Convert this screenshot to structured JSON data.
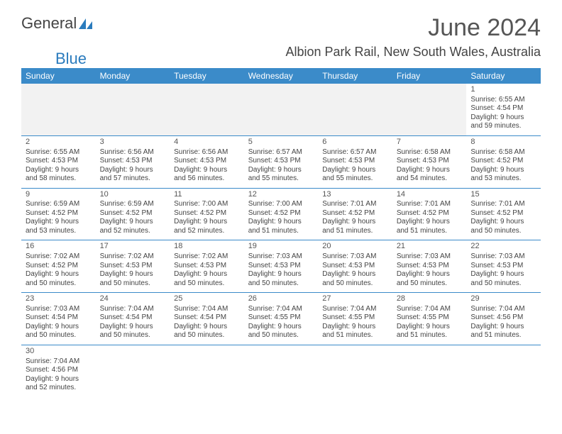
{
  "logo": {
    "text1": "General",
    "text2": "Blue"
  },
  "title": "June 2024",
  "location": "Albion Park Rail, New South Wales, Australia",
  "weekdays": [
    "Sunday",
    "Monday",
    "Tuesday",
    "Wednesday",
    "Thursday",
    "Friday",
    "Saturday"
  ],
  "colors": {
    "header_bg": "#3b8bc9",
    "header_text": "#ffffff",
    "border": "#3b8bc9"
  },
  "days": [
    {
      "n": 1,
      "sr": "6:55 AM",
      "ss": "4:54 PM",
      "dh": 9,
      "dm": 59
    },
    {
      "n": 2,
      "sr": "6:55 AM",
      "ss": "4:53 PM",
      "dh": 9,
      "dm": 58
    },
    {
      "n": 3,
      "sr": "6:56 AM",
      "ss": "4:53 PM",
      "dh": 9,
      "dm": 57
    },
    {
      "n": 4,
      "sr": "6:56 AM",
      "ss": "4:53 PM",
      "dh": 9,
      "dm": 56
    },
    {
      "n": 5,
      "sr": "6:57 AM",
      "ss": "4:53 PM",
      "dh": 9,
      "dm": 55
    },
    {
      "n": 6,
      "sr": "6:57 AM",
      "ss": "4:53 PM",
      "dh": 9,
      "dm": 55
    },
    {
      "n": 7,
      "sr": "6:58 AM",
      "ss": "4:53 PM",
      "dh": 9,
      "dm": 54
    },
    {
      "n": 8,
      "sr": "6:58 AM",
      "ss": "4:52 PM",
      "dh": 9,
      "dm": 53
    },
    {
      "n": 9,
      "sr": "6:59 AM",
      "ss": "4:52 PM",
      "dh": 9,
      "dm": 53
    },
    {
      "n": 10,
      "sr": "6:59 AM",
      "ss": "4:52 PM",
      "dh": 9,
      "dm": 52
    },
    {
      "n": 11,
      "sr": "7:00 AM",
      "ss": "4:52 PM",
      "dh": 9,
      "dm": 52
    },
    {
      "n": 12,
      "sr": "7:00 AM",
      "ss": "4:52 PM",
      "dh": 9,
      "dm": 51
    },
    {
      "n": 13,
      "sr": "7:01 AM",
      "ss": "4:52 PM",
      "dh": 9,
      "dm": 51
    },
    {
      "n": 14,
      "sr": "7:01 AM",
      "ss": "4:52 PM",
      "dh": 9,
      "dm": 51
    },
    {
      "n": 15,
      "sr": "7:01 AM",
      "ss": "4:52 PM",
      "dh": 9,
      "dm": 50
    },
    {
      "n": 16,
      "sr": "7:02 AM",
      "ss": "4:52 PM",
      "dh": 9,
      "dm": 50
    },
    {
      "n": 17,
      "sr": "7:02 AM",
      "ss": "4:53 PM",
      "dh": 9,
      "dm": 50
    },
    {
      "n": 18,
      "sr": "7:02 AM",
      "ss": "4:53 PM",
      "dh": 9,
      "dm": 50
    },
    {
      "n": 19,
      "sr": "7:03 AM",
      "ss": "4:53 PM",
      "dh": 9,
      "dm": 50
    },
    {
      "n": 20,
      "sr": "7:03 AM",
      "ss": "4:53 PM",
      "dh": 9,
      "dm": 50
    },
    {
      "n": 21,
      "sr": "7:03 AM",
      "ss": "4:53 PM",
      "dh": 9,
      "dm": 50
    },
    {
      "n": 22,
      "sr": "7:03 AM",
      "ss": "4:53 PM",
      "dh": 9,
      "dm": 50
    },
    {
      "n": 23,
      "sr": "7:03 AM",
      "ss": "4:54 PM",
      "dh": 9,
      "dm": 50
    },
    {
      "n": 24,
      "sr": "7:04 AM",
      "ss": "4:54 PM",
      "dh": 9,
      "dm": 50
    },
    {
      "n": 25,
      "sr": "7:04 AM",
      "ss": "4:54 PM",
      "dh": 9,
      "dm": 50
    },
    {
      "n": 26,
      "sr": "7:04 AM",
      "ss": "4:55 PM",
      "dh": 9,
      "dm": 50
    },
    {
      "n": 27,
      "sr": "7:04 AM",
      "ss": "4:55 PM",
      "dh": 9,
      "dm": 51
    },
    {
      "n": 28,
      "sr": "7:04 AM",
      "ss": "4:55 PM",
      "dh": 9,
      "dm": 51
    },
    {
      "n": 29,
      "sr": "7:04 AM",
      "ss": "4:56 PM",
      "dh": 9,
      "dm": 51
    },
    {
      "n": 30,
      "sr": "7:04 AM",
      "ss": "4:56 PM",
      "dh": 9,
      "dm": 52
    }
  ],
  "labels": {
    "sunrise": "Sunrise:",
    "sunset": "Sunset:",
    "daylight": "Daylight:",
    "hours_and": "hours and",
    "minutes": "minutes."
  },
  "first_weekday_index": 6
}
